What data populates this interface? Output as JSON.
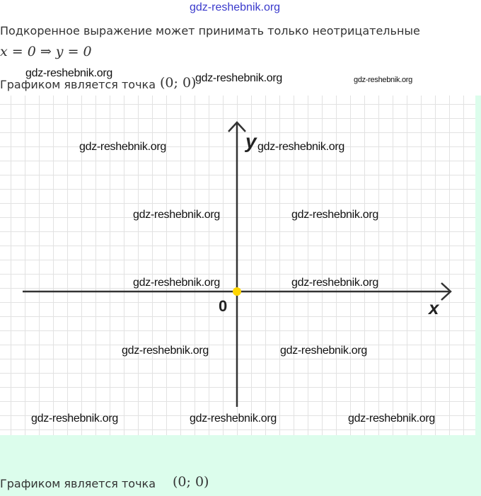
{
  "header": {
    "watermark": "gdz-reshebnik.org"
  },
  "content": {
    "sentence": "Подкоренное выражение может принимать только неотрицательные",
    "formula": "x = 0  ⇒  y = 0",
    "graph_caption": "Графиком является точка",
    "point": "(0; 0)",
    "bottom_caption": "Графиком является точка",
    "bottom_point": "(0; 0)"
  },
  "graph": {
    "x_label": "x",
    "y_label": "y",
    "origin_label": "0",
    "point_color": "#ffd500",
    "plotted_point": {
      "x": 0,
      "y": 0
    }
  },
  "watermarks": [
    "gdz-reshebnik.org"
  ],
  "colors": {
    "panel_green": "#dcfdec",
    "watermark_blue": "#3a3acc"
  }
}
